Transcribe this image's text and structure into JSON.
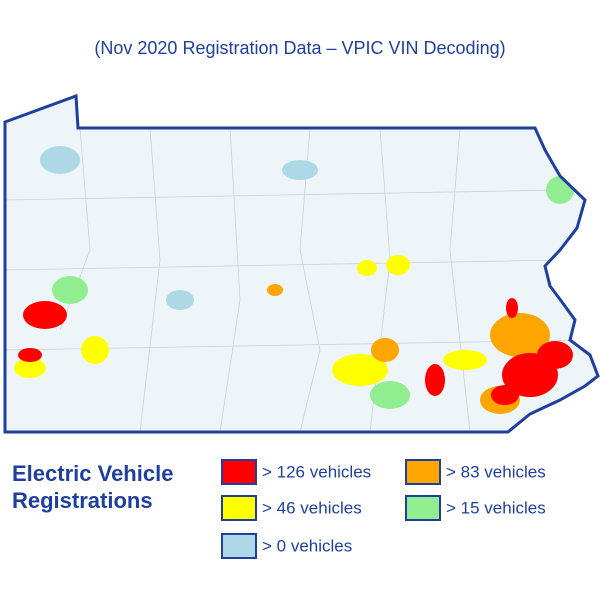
{
  "subtitle": "(Nov 2020 Registration Data – VPIC VIN Decoding)",
  "legend": {
    "title_lines": [
      "Electric Vehicle",
      "Registrations"
    ],
    "items": [
      {
        "label": "> 126 vehicles",
        "color": "#ff0000"
      },
      {
        "label": "> 83 vehicles",
        "color": "#ffa500"
      },
      {
        "label": "> 46 vehicles",
        "color": "#ffff00"
      },
      {
        "label": "> 15 vehicles",
        "color": "#90ee90"
      },
      {
        "label": "> 0 vehicles",
        "color": "#add8e6"
      }
    ]
  }
}
